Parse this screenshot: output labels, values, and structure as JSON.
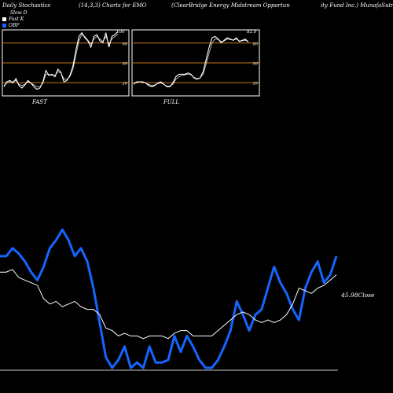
{
  "header": {
    "left": "Daily Stochastics",
    "mid": "(14,3,3) Charts for EMO",
    "right1": "(ClearBridge  Energy Midstream Opportun",
    "right2": "ity Fund Inc.) MunafaSutra.com"
  },
  "legend": [
    {
      "label": "Slow  D",
      "color": "#000000"
    },
    {
      "label": "Fast K",
      "color": "#ffffff"
    },
    {
      "label": "OBF",
      "color": "#1565ff"
    }
  ],
  "colors": {
    "blue": "#1565ff",
    "white": "#ffffff",
    "orange": "#c87814",
    "panel_border": "#ffffff"
  },
  "chart_data": [
    {
      "type": "line",
      "panel": "FAST",
      "caption": "FAST",
      "ylim": [
        0,
        100
      ],
      "grid_levels": [
        80,
        50,
        20
      ],
      "level_labels": [
        "80",
        "50",
        "20"
      ],
      "last_value_label": "100",
      "series": [
        {
          "name": "Fast K",
          "values": [
            12,
            20,
            22,
            18,
            25,
            14,
            10,
            15,
            22,
            18,
            12,
            8,
            10,
            20,
            38,
            30,
            32,
            28,
            40,
            35,
            20,
            22,
            30,
            45,
            70,
            92,
            98,
            90,
            85,
            75,
            92,
            95,
            85,
            82,
            98,
            75,
            92,
            95,
            100
          ]
        },
        {
          "name": "Slow  D",
          "values": [
            14,
            18,
            20,
            20,
            22,
            16,
            14,
            16,
            20,
            18,
            15,
            12,
            12,
            18,
            32,
            32,
            30,
            30,
            36,
            34,
            24,
            24,
            28,
            40,
            62,
            85,
            95,
            92,
            86,
            80,
            88,
            92,
            88,
            84,
            92,
            80,
            88,
            92,
            96
          ]
        }
      ]
    },
    {
      "type": "line",
      "panel": "FULL",
      "caption": "FULL",
      "ylim": [
        0,
        100
      ],
      "grid_levels": [
        80,
        50,
        20
      ],
      "level_labels": [
        "80",
        "50",
        "20"
      ],
      "last_value_label": "82.9",
      "series": [
        {
          "name": "Fast K",
          "values": [
            16,
            20,
            20,
            20,
            18,
            14,
            12,
            14,
            18,
            20,
            16,
            12,
            12,
            18,
            28,
            32,
            32,
            32,
            34,
            32,
            26,
            24,
            26,
            36,
            55,
            75,
            90,
            92,
            88,
            82,
            86,
            90,
            88,
            86,
            90,
            84,
            86,
            88,
            83
          ]
        },
        {
          "name": "Slow  D",
          "values": [
            18,
            19,
            20,
            19,
            18,
            16,
            14,
            15,
            17,
            18,
            16,
            13,
            13,
            16,
            24,
            28,
            30,
            31,
            32,
            31,
            27,
            25,
            26,
            32,
            48,
            66,
            82,
            88,
            87,
            84,
            85,
            88,
            87,
            86,
            88,
            85,
            85,
            86,
            84
          ]
        }
      ]
    },
    {
      "type": "line",
      "panel": "PRICE",
      "value_label": "45.98",
      "close_label": "Close",
      "series": [
        {
          "name": "OBF",
          "values": [
            42,
            42,
            45,
            43,
            40,
            36,
            33,
            38,
            45,
            48,
            52,
            48,
            42,
            45,
            40,
            30,
            17,
            4,
            0,
            3,
            8,
            0,
            2,
            0,
            8,
            2,
            2,
            3,
            12,
            6,
            12,
            8,
            3,
            0,
            0,
            3,
            8,
            14,
            25,
            20,
            14,
            20,
            22,
            30,
            38,
            32,
            28,
            22,
            18,
            30,
            36,
            40,
            32,
            35,
            42
          ]
        },
        {
          "name": "Close",
          "values": [
            36,
            36,
            37,
            34,
            33,
            32,
            31,
            26,
            24,
            25,
            23,
            24,
            25,
            23,
            22,
            22,
            20,
            15,
            14,
            12,
            13,
            12,
            12,
            11,
            12,
            12,
            12,
            11,
            13,
            14,
            14,
            12,
            12,
            12,
            12,
            14,
            16,
            18,
            20,
            21,
            20,
            18,
            17,
            18,
            17,
            18,
            20,
            24,
            30,
            29,
            28,
            30,
            31,
            33,
            35
          ]
        }
      ]
    }
  ]
}
